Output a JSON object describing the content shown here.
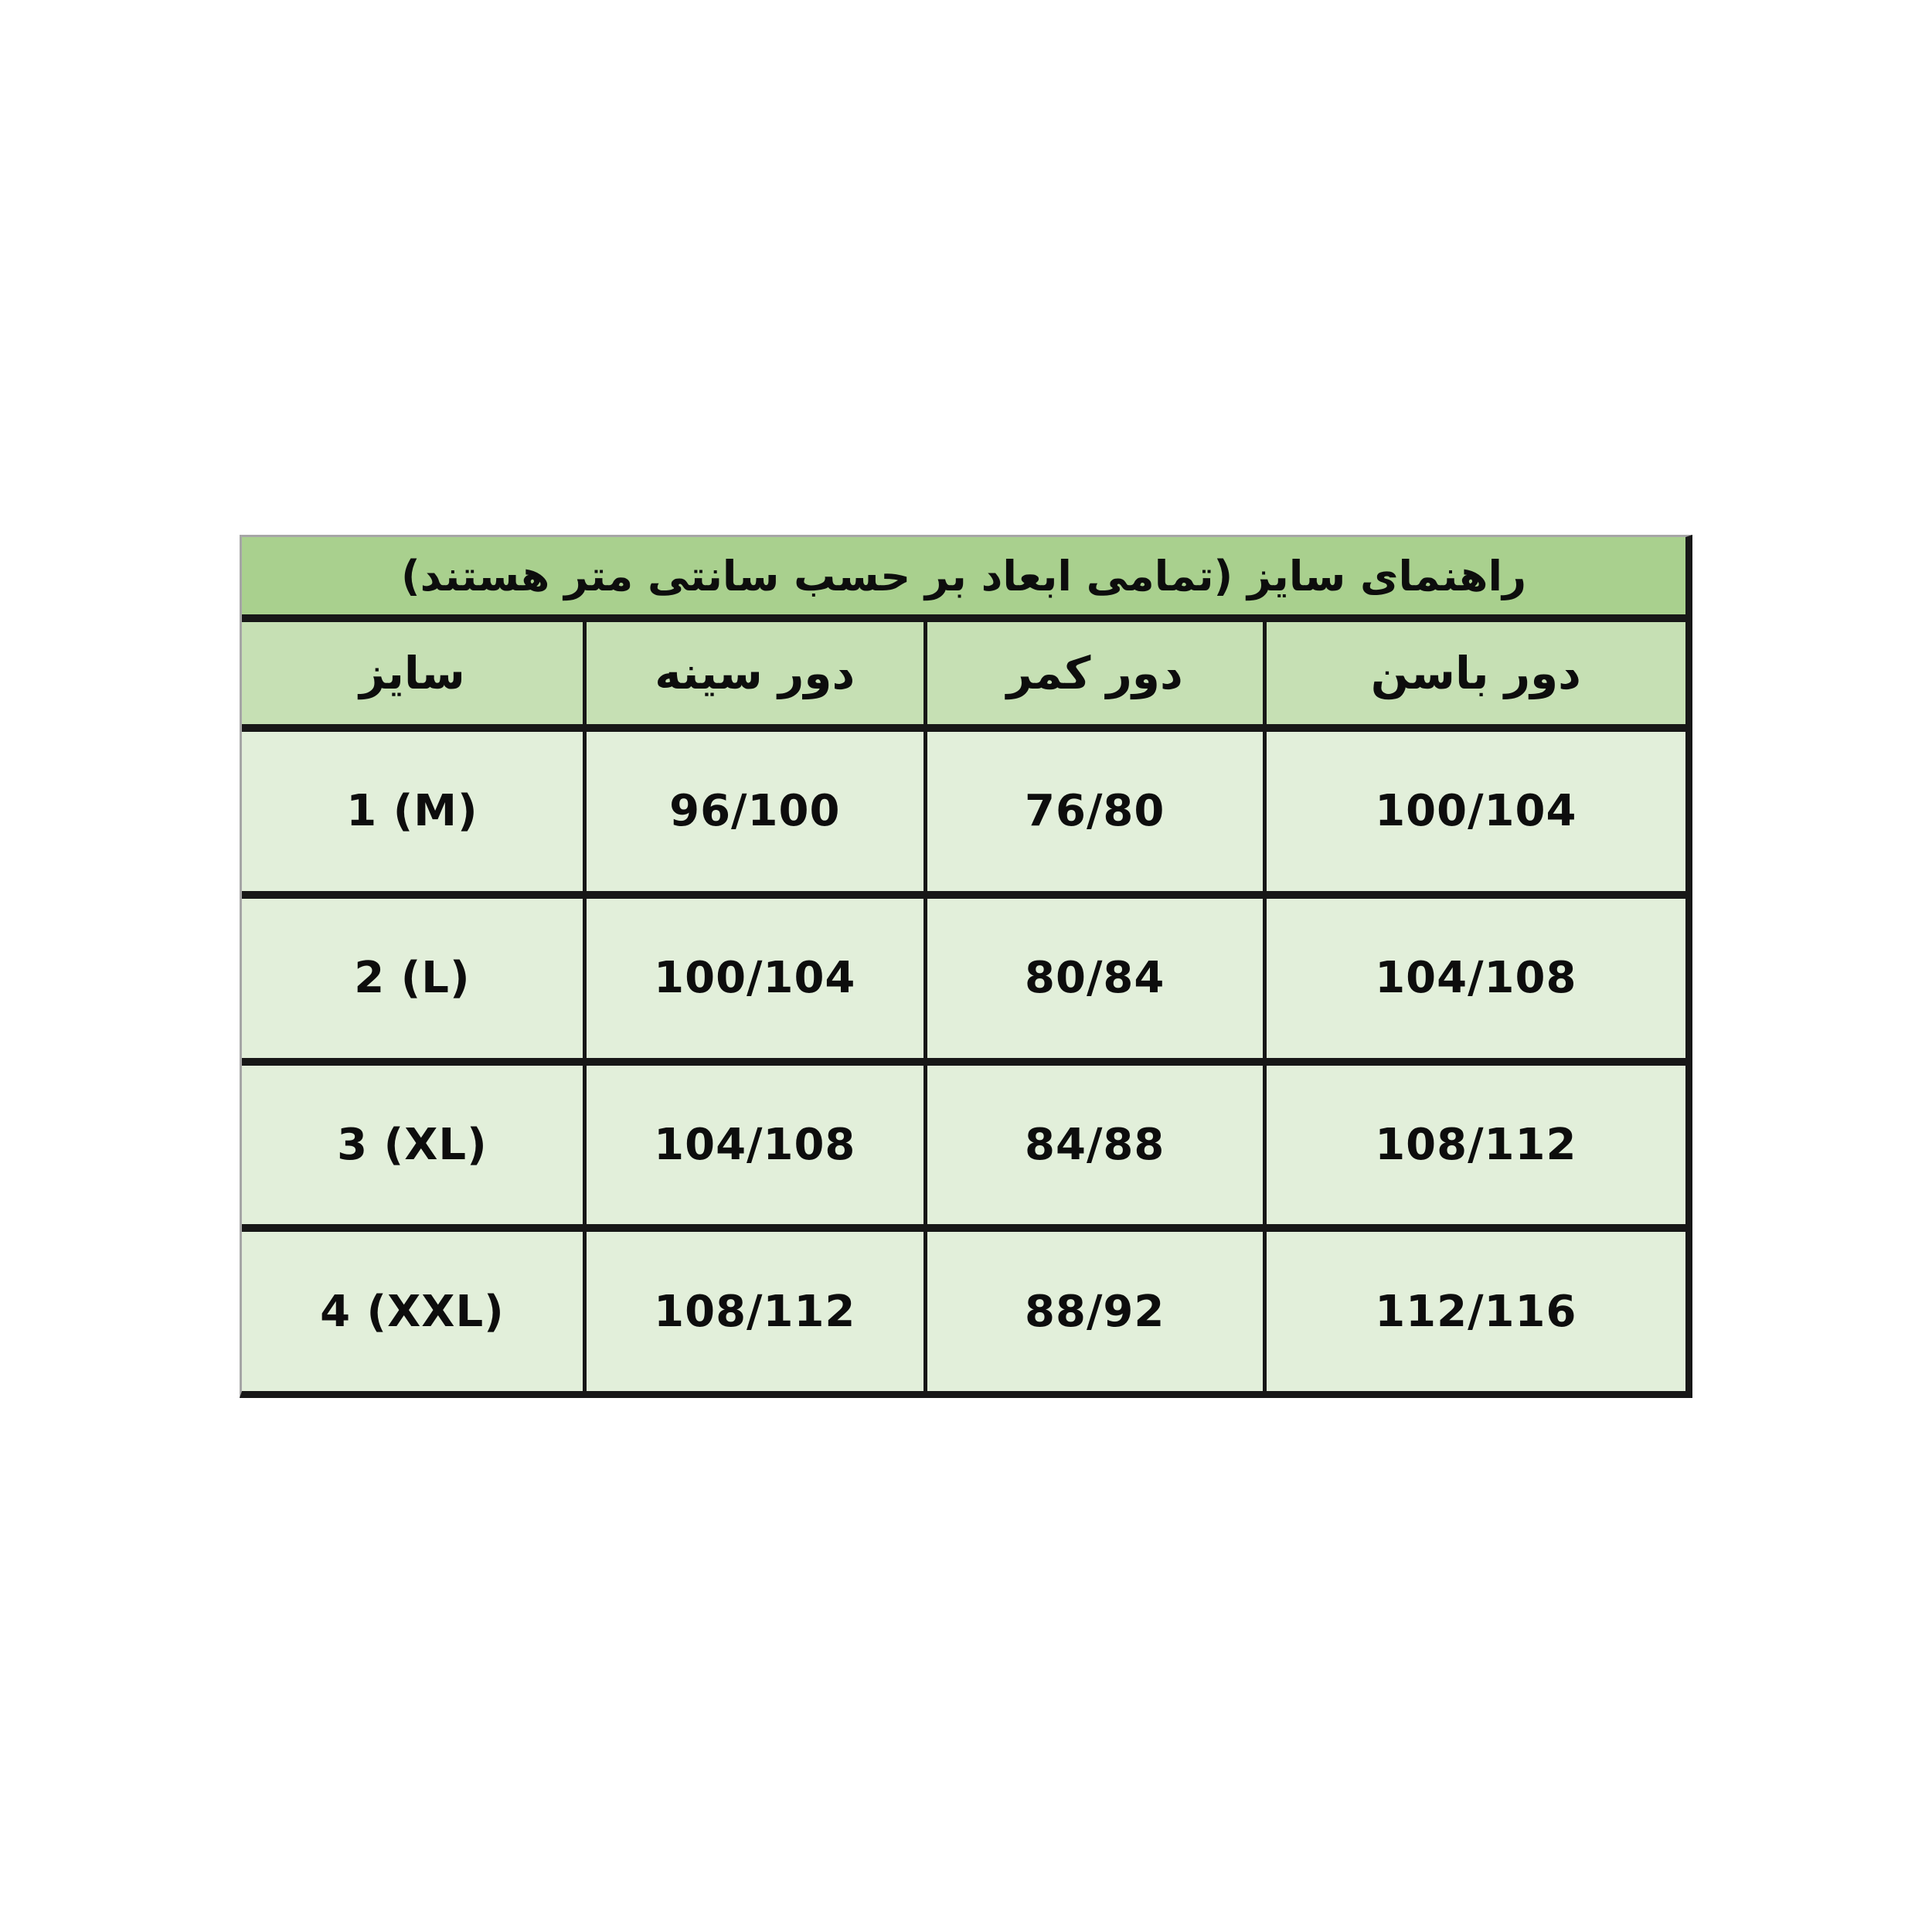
{
  "page": {
    "background": "#ffffff"
  },
  "table": {
    "title": "راهنمای سایز (تمامی ابعاد بر حسب سانتی متر هستند)",
    "direction": "rtl",
    "columns": {
      "size": "سایز",
      "bust": "دور سینه",
      "waist": "دور کمر",
      "hip": "دور باسن"
    },
    "rows": [
      {
        "size": "1 (M)",
        "bust": "96/100",
        "waist": "76/80",
        "hip": "100/104"
      },
      {
        "size": "2 (L)",
        "bust": "100/104",
        "waist": "80/84",
        "hip": "104/108"
      },
      {
        "size": "3 (XL)",
        "bust": "104/108",
        "waist": "84/88",
        "hip": "108/112"
      },
      {
        "size": "4 (XXL)",
        "bust": "108/112",
        "waist": "88/92",
        "hip": "112/116"
      }
    ],
    "colors": {
      "title_bg": "#a9d08e",
      "header_bg": "#c6e0b4",
      "row_bg": "#e2efda",
      "border_dark": "#171717",
      "border_light": "#a6a6a6",
      "text": "#0d0d0d"
    }
  },
  "chart_data": {
    "type": "table",
    "title": "راهنمای سایز (تمامی ابعاد بر حسب سانتی متر هستند)",
    "columns": [
      "سایز",
      "دور سینه",
      "دور کمر",
      "دور باسن"
    ],
    "rows": [
      [
        "1 (M)",
        "96/100",
        "76/80",
        "100/104"
      ],
      [
        "2 (L)",
        "100/104",
        "80/84",
        "104/108"
      ],
      [
        "3 (XL)",
        "104/108",
        "84/88",
        "108/112"
      ],
      [
        "4 (XXL)",
        "108/112",
        "88/92",
        "112/116"
      ]
    ]
  }
}
